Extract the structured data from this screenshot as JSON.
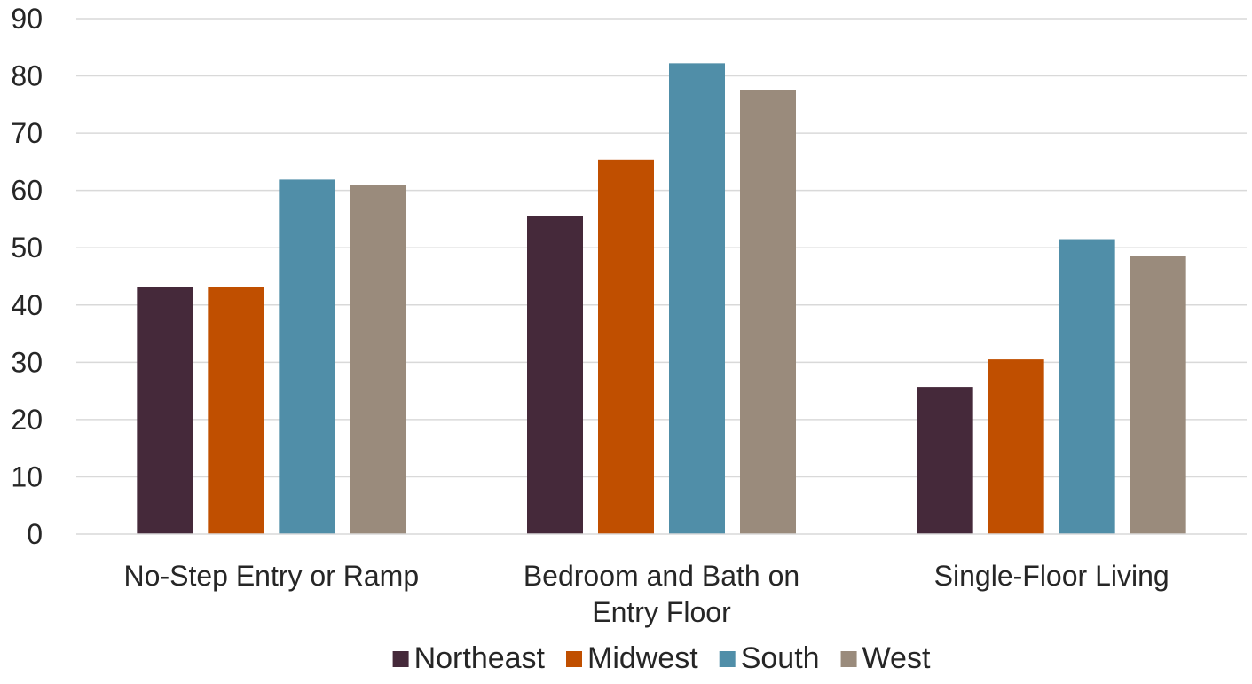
{
  "chart_data": {
    "type": "bar",
    "title": "",
    "xlabel": "",
    "ylabel": "",
    "ylim": [
      0,
      90
    ],
    "yticks": [
      0,
      10,
      20,
      30,
      40,
      50,
      60,
      70,
      80,
      90
    ],
    "grid": true,
    "legend_position": "bottom",
    "categories": [
      [
        "No-Step Entry or Ramp"
      ],
      [
        "Bedroom and Bath on",
        "Entry Floor"
      ],
      [
        "Single-Floor Living"
      ]
    ],
    "series": [
      {
        "name": "Northeast",
        "color": "#45293a",
        "values": [
          43.2,
          55.6,
          25.7
        ]
      },
      {
        "name": "Midwest",
        "color": "#c04f00",
        "values": [
          43.2,
          65.4,
          30.5
        ]
      },
      {
        "name": "South",
        "color": "#508ea8",
        "values": [
          61.9,
          82.2,
          51.5
        ]
      },
      {
        "name": "West",
        "color": "#9a8b7c",
        "values": [
          61.0,
          77.6,
          48.6
        ]
      }
    ]
  }
}
